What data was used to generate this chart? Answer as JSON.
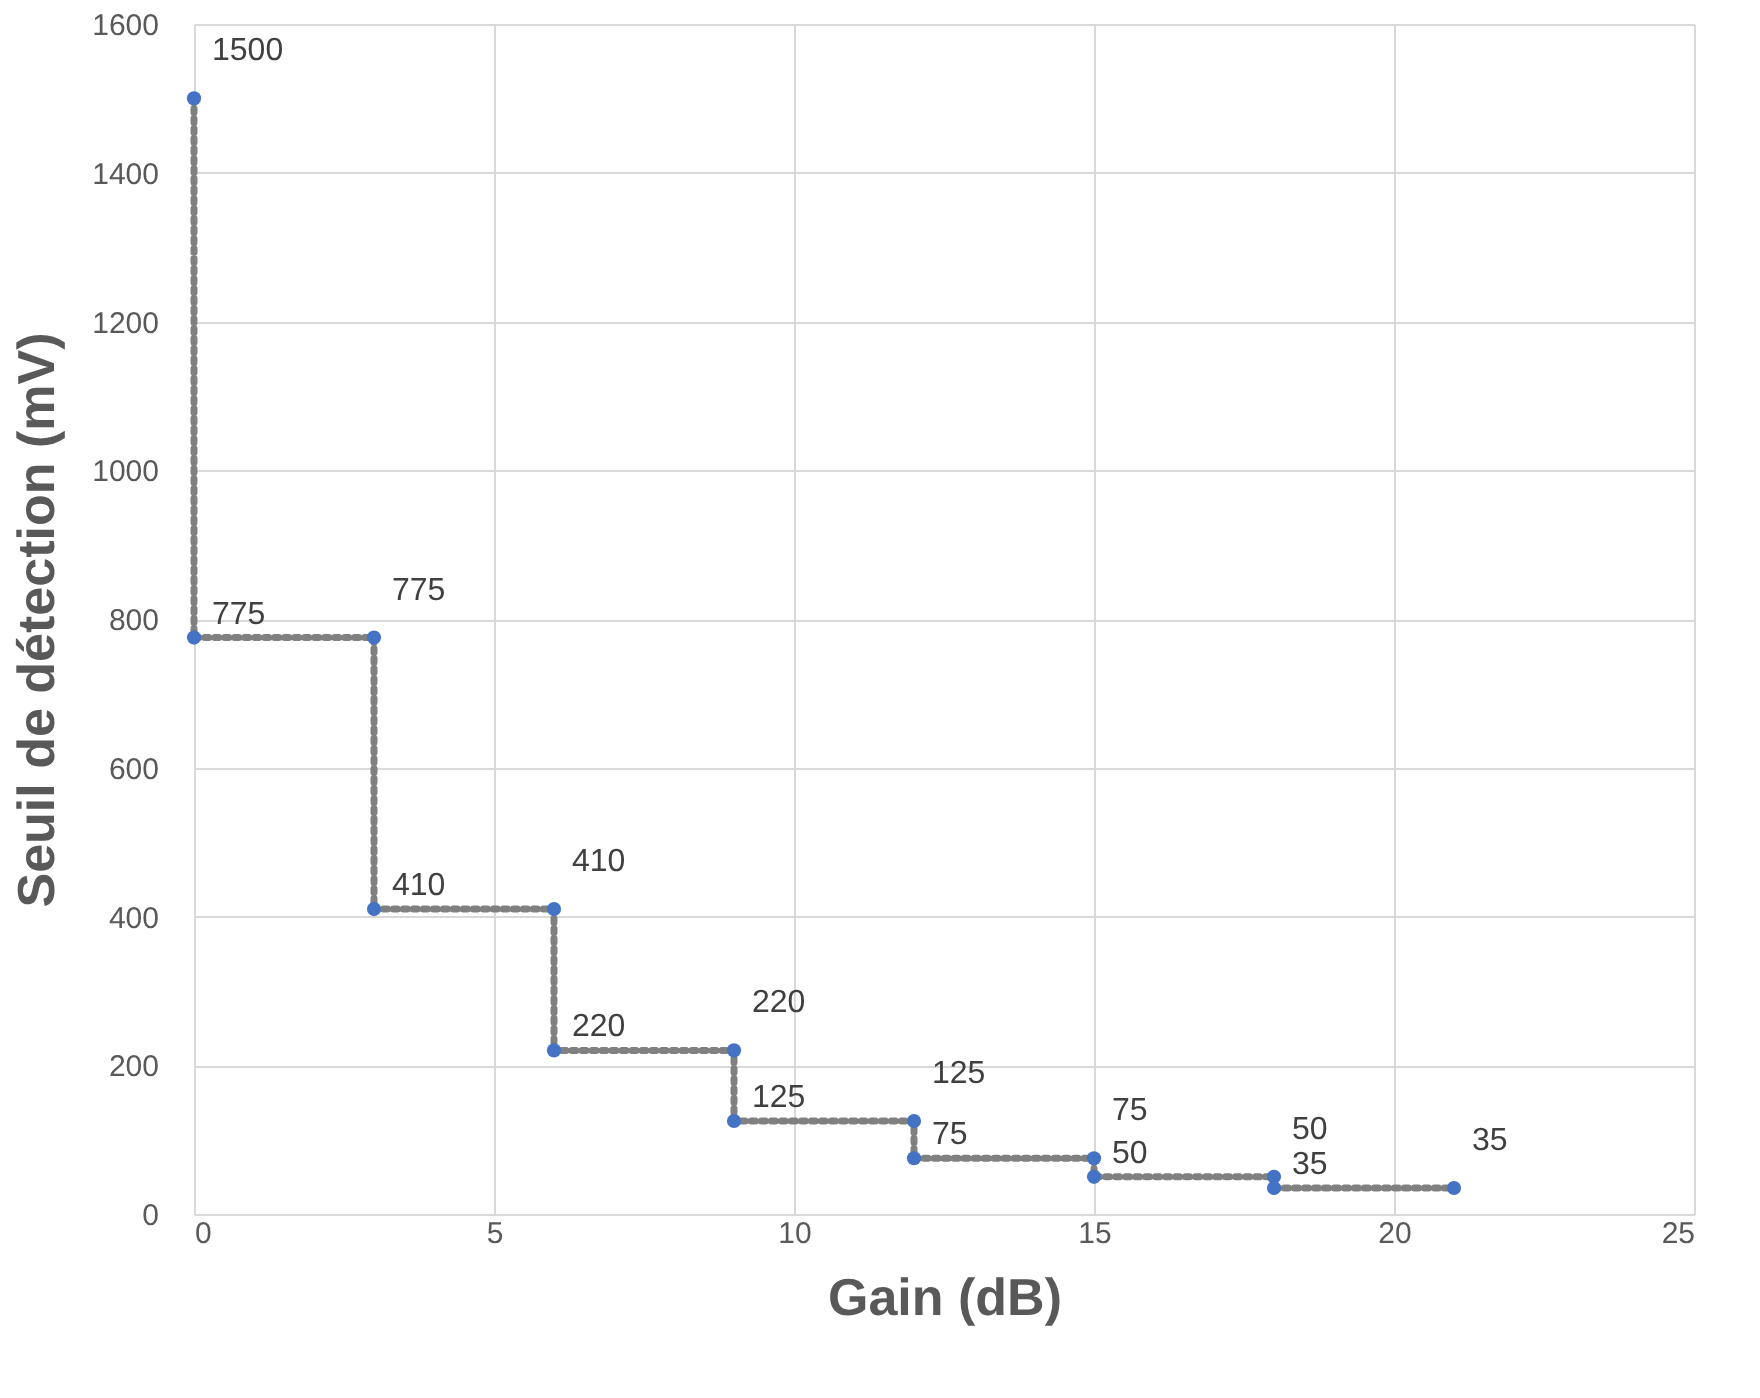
{
  "chart_data": {
    "type": "scatter",
    "xlabel": "Gain (dB)",
    "ylabel": "Seuil de détection (mV)",
    "x": [
      0,
      0,
      3,
      3,
      6,
      6,
      9,
      9,
      12,
      12,
      15,
      15,
      18,
      18,
      21
    ],
    "series": [
      {
        "type": "line",
        "color": "#808080",
        "line_style": "dotted",
        "marker": "none",
        "values": [
          1500,
          775,
          775,
          410,
          410,
          220,
          220,
          125,
          125,
          75,
          75,
          50,
          50,
          35,
          35
        ]
      },
      {
        "color": "#4472c4",
        "marker": "circle",
        "data_labels": true,
        "values": [
          1500,
          775,
          775,
          410,
          410,
          220,
          220,
          125,
          125,
          75,
          75,
          50,
          50,
          35,
          35
        ]
      }
    ],
    "xlim": [
      0,
      25
    ],
    "xticks": [
      0,
      5,
      10,
      15,
      20,
      25
    ],
    "ylim": [
      0,
      1600
    ],
    "yticks": [
      0,
      200,
      400,
      600,
      800,
      1000,
      1200,
      1400,
      1600
    ],
    "grid": true
  }
}
